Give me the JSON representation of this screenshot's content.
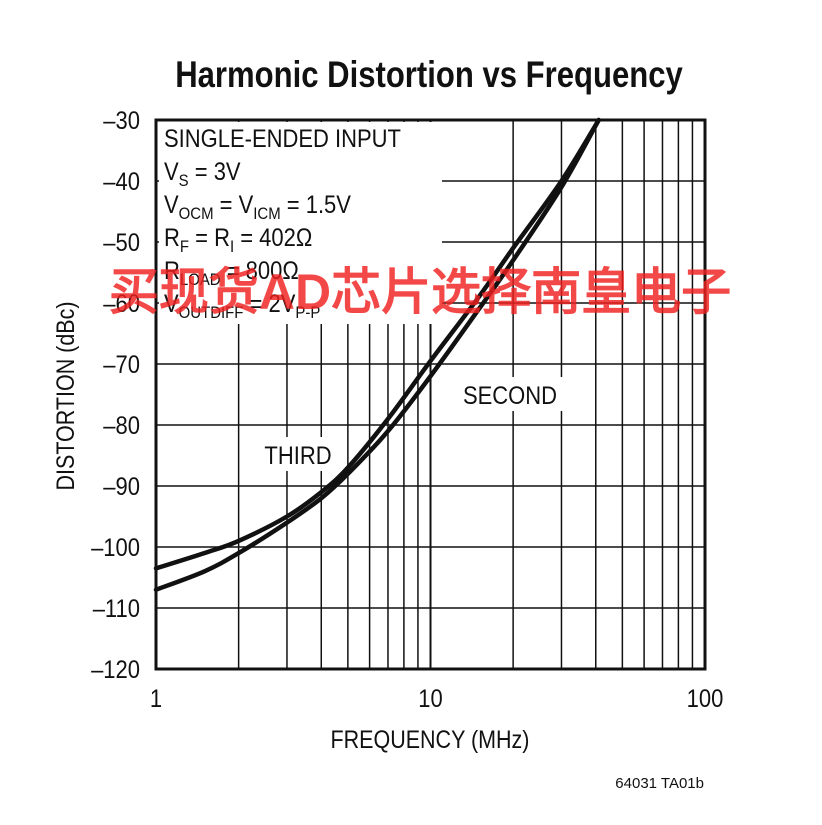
{
  "chart_data": {
    "type": "line",
    "title": "Harmonic Distortion vs Frequency",
    "xlabel": "FREQUENCY (MHz)",
    "ylabel": "DISTORTION (dBc)",
    "x_scale": "log",
    "xlim": [
      1,
      100
    ],
    "ylim": [
      -120,
      -30
    ],
    "x_ticks": [
      1,
      10,
      100
    ],
    "x_tick_labels": [
      "1",
      "10",
      "100"
    ],
    "y_ticks": [
      -30,
      -40,
      -50,
      -60,
      -70,
      -80,
      -90,
      -100,
      -110,
      -120
    ],
    "y_tick_labels": [
      "–30",
      "–40",
      "–50",
      "–60",
      "–70",
      "–80",
      "–90",
      "–100",
      "–110",
      "–120"
    ],
    "grid": true,
    "conditions": {
      "line1": "SINGLE-ENDED INPUT",
      "line2": {
        "a": "V",
        "a_sub": "S",
        "b": " = 3V"
      },
      "line3": {
        "a": "V",
        "a_sub": "OCM",
        "b": " = V",
        "b_sub": "ICM",
        "c": " = 1.5V"
      },
      "line4": {
        "a": "R",
        "a_sub": "F",
        "b": " = R",
        "b_sub": "I",
        "c": " = 402Ω"
      },
      "line5": {
        "a": "R",
        "a_sub": "LOAD",
        "b": " = 800Ω"
      },
      "line6": {
        "a": "V",
        "a_sub": "OUTDIFF",
        "b": " = 2V",
        "b_sub": "P-P"
      }
    },
    "series": [
      {
        "name": "SECOND",
        "x": [
          1,
          1.5,
          2,
          3,
          4,
          5,
          7,
          10,
          15,
          20,
          30,
          41
        ],
        "y": [
          -107,
          -104,
          -101,
          -96,
          -92,
          -88,
          -81,
          -72,
          -61,
          -53,
          -41,
          -30
        ]
      },
      {
        "name": "THIRD",
        "x": [
          1,
          1.5,
          2,
          3,
          4,
          5,
          7,
          10,
          15,
          20,
          30,
          41
        ],
        "y": [
          -103.5,
          -101,
          -99,
          -95,
          -91,
          -87,
          -79,
          -69.5,
          -59,
          -51,
          -40,
          -30
        ]
      }
    ],
    "figure_code": "64031 TA01b"
  },
  "watermark": "买现货AD芯片选择南皇电子"
}
